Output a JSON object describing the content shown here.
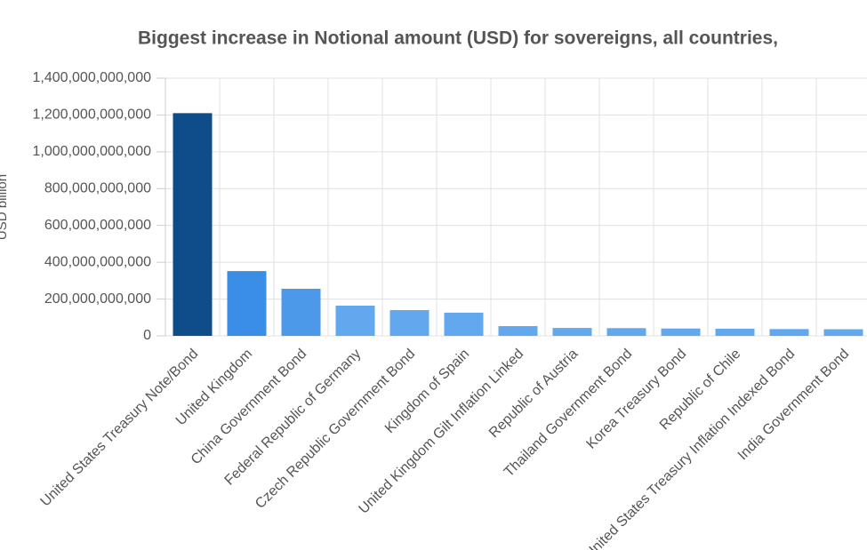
{
  "chart_data": {
    "type": "bar",
    "title": "Biggest increase in Notional amount (USD) for sovereigns, all countries,",
    "y_label": "USD billion",
    "categories": [
      "United States Treasury Note/Bond",
      "United Kingdom",
      "China Government Bond",
      "Federal Republic of Germany",
      "Czech Republic Government Bond",
      "Kingdom of Spain",
      "United Kingdom Gilt Inflation Linked",
      "Republic of Austria",
      "Thailand Government Bond",
      "Korea Treasury Bond",
      "Republic of Chile",
      "United States Treasury Inflation Indexed Bond",
      "India Government Bond"
    ],
    "values": [
      1210000000000,
      352000000000,
      256000000000,
      164000000000,
      140000000000,
      126000000000,
      53000000000,
      43000000000,
      42000000000,
      40000000000,
      39000000000,
      37000000000,
      36000000000
    ],
    "colors": [
      "#0f4c8a",
      "#3a8ee6",
      "#4d99e9",
      "#62a8ee",
      "#62a8ee",
      "#62a8ee",
      "#62a8ee",
      "#62a8ee",
      "#62a8ee",
      "#62a8ee",
      "#62a8ee",
      "#62a8ee",
      "#62a8ee"
    ],
    "ylim": [
      0,
      1400000000000
    ],
    "yticks": [
      0,
      {
        "value": 200000000000,
        "label": "200,000,000,000"
      },
      {
        "value": 400000000000,
        "label": "400,000,000,000"
      },
      {
        "value": 600000000000,
        "label": "600,000,000,000"
      },
      {
        "value": 800000000000,
        "label": "800,000,000,000"
      },
      {
        "value": 1000000000000,
        "label": "1,000,000,000,000"
      },
      {
        "value": 1200000000000,
        "label": "1,200,000,000,000"
      },
      {
        "value": 1400000000000,
        "label": "1,400,000,000,000"
      }
    ],
    "grid": true
  }
}
